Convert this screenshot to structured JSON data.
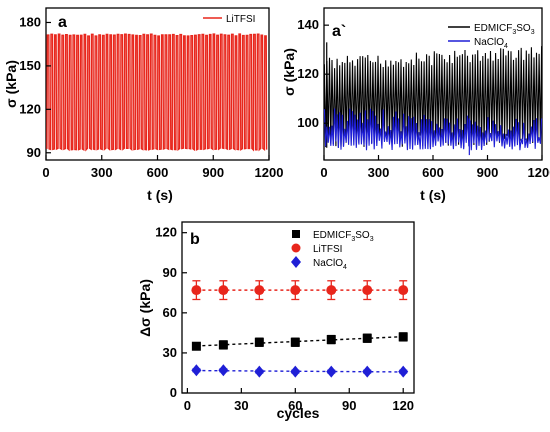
{
  "chart_data": [
    {
      "panel_label": "a",
      "type": "line",
      "xlabel": "t (s)",
      "ylabel": "σ (kPa)",
      "xlim": [
        0,
        1200
      ],
      "ylim": [
        85,
        190
      ],
      "xticks": [
        0,
        300,
        600,
        900,
        1200
      ],
      "yticks": [
        90,
        120,
        150,
        180
      ],
      "legend_position": "top-right",
      "series": [
        {
          "name": "LiTFSI",
          "color": "#e8261c",
          "min": 92,
          "max": 172
        }
      ]
    },
    {
      "panel_label": "a`",
      "type": "line",
      "xlabel": "t (s)",
      "ylabel": "σ (kPa)",
      "xlim": [
        0,
        1200
      ],
      "ylim": [
        85,
        147
      ],
      "xticks": [
        0,
        300,
        600,
        900,
        1200
      ],
      "yticks": [
        100,
        120,
        140
      ],
      "legend_position": "top-right",
      "series": [
        {
          "name": "EDMICF3SO3",
          "color": "#000000",
          "min": 90,
          "max": [
            127,
            132
          ]
        },
        {
          "name": "NaClO4",
          "color": "#1f1fd6",
          "min": 89,
          "max": [
            107,
            102
          ]
        }
      ]
    },
    {
      "panel_label": "b",
      "type": "scatter",
      "xlabel": "cycles",
      "ylabel": "Δσ (kPa)",
      "xlim": [
        -3,
        126
      ],
      "ylim": [
        0,
        128
      ],
      "xticks": [
        0,
        30,
        60,
        90,
        120
      ],
      "yticks": [
        0,
        30,
        60,
        90,
        120
      ],
      "legend_position": "top-right",
      "x": [
        5,
        20,
        40,
        60,
        80,
        100,
        120
      ],
      "series": [
        {
          "name": "EDMICF3SO3",
          "color": "#000000",
          "marker": "square",
          "values": [
            35,
            36,
            38,
            38,
            40,
            41,
            42
          ],
          "error": [
            2,
            3,
            3,
            3,
            3,
            3,
            3
          ]
        },
        {
          "name": "LiTFSI",
          "color": "#e8261c",
          "marker": "circle",
          "values": [
            77,
            77,
            77,
            77,
            77,
            77,
            77
          ],
          "error": [
            7,
            7,
            7,
            7,
            7,
            7,
            7
          ]
        },
        {
          "name": "NaClO4",
          "color": "#1f1fd6",
          "marker": "diamond",
          "values": [
            17,
            17,
            16,
            16,
            16,
            16,
            16
          ],
          "error": [
            1,
            1,
            1,
            1,
            1,
            1,
            1
          ]
        }
      ]
    }
  ]
}
